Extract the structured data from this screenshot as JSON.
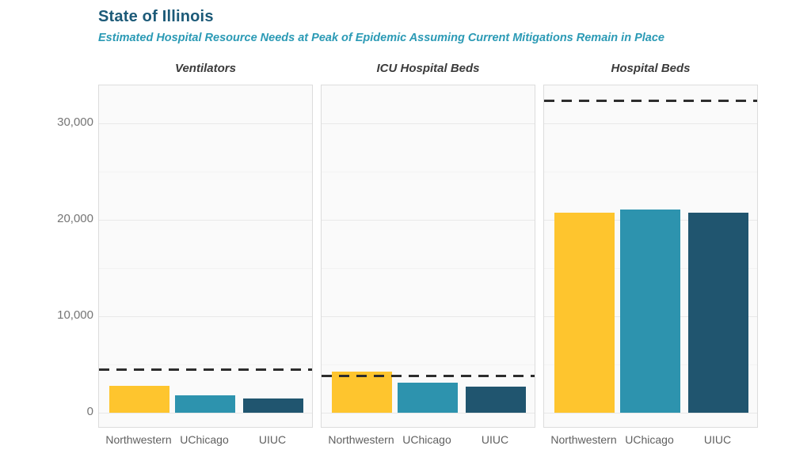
{
  "chart_data": {
    "type": "bar",
    "title": "State of Illinois",
    "subtitle": "Estimated Hospital Resource Needs at Peak of Epidemic Assuming Current Mitigations Remain in Place",
    "categories": [
      "Northwestern",
      "UChicago",
      "UIUC"
    ],
    "panels": [
      {
        "title": "Ventilators",
        "values": [
          2800,
          1800,
          1500
        ],
        "capacity": 4500
      },
      {
        "title": "ICU Hospital Beds",
        "values": [
          4300,
          3100,
          2700
        ],
        "capacity": 3800
      },
      {
        "title": "Hospital Beds",
        "values": [
          20700,
          21100,
          20700
        ],
        "capacity": 32300
      }
    ],
    "series_note": "Each panel shows one resource; bars are model estimates by institution; dashed line is current capacity",
    "bar_colors": [
      "#FEC52E",
      "#2D93AE",
      "#20556F"
    ],
    "capacity_line_color": "#2d2d2d",
    "title_color": "#1c5a78",
    "subtitle_color": "#2b9ab5",
    "y_ticks": [
      {
        "value": 0,
        "label": "0"
      },
      {
        "value": 10000,
        "label": "10,000"
      },
      {
        "value": 20000,
        "label": "20,000"
      },
      {
        "value": 30000,
        "label": "30,000"
      }
    ],
    "minor_tick_step": 5000,
    "ylim": [
      0,
      33900
    ],
    "grid": true,
    "legend": "none"
  }
}
